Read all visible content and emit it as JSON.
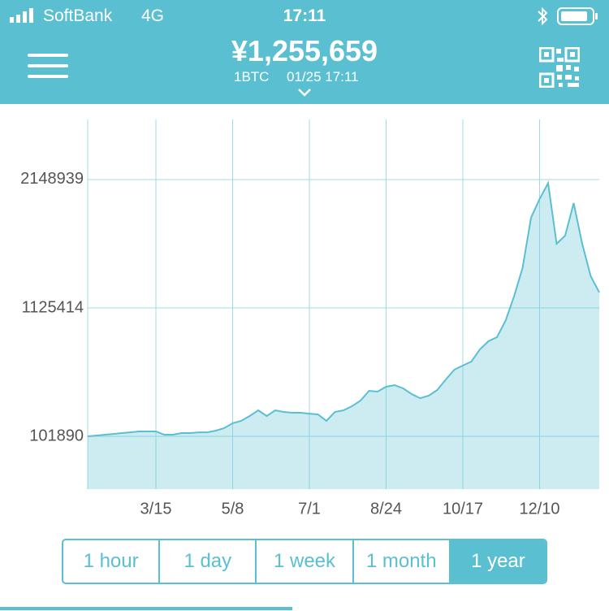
{
  "status_bar": {
    "carrier": "SoftBank",
    "network": "4G",
    "time": "17:11"
  },
  "header": {
    "price": "¥1,255,659",
    "unit": "1BTC",
    "timestamp": "01/25 17:11"
  },
  "chart_data": {
    "type": "area",
    "categories": [
      null,
      null,
      null,
      null,
      null,
      null,
      null,
      null,
      "3/15",
      null,
      null,
      null,
      null,
      null,
      null,
      null,
      null,
      "5/8",
      null,
      null,
      null,
      null,
      null,
      null,
      null,
      null,
      "7/1",
      null,
      null,
      null,
      null,
      null,
      null,
      null,
      null,
      "8/24",
      null,
      null,
      null,
      null,
      null,
      null,
      null,
      null,
      "10/17",
      null,
      null,
      null,
      null,
      null,
      null,
      null,
      null,
      "12/10",
      null,
      null,
      null,
      null,
      null,
      null,
      null
    ],
    "series": [
      {
        "color": "#5bbfd2",
        "values": [
          101890,
          108000,
          115000,
          121000,
          128000,
          134000,
          141000,
          141000,
          141000,
          115000,
          115000,
          128000,
          128000,
          134000,
          134000,
          147000,
          167000,
          206000,
          225000,
          264000,
          309000,
          264000,
          309000,
          296000,
          290000,
          290000,
          283000,
          277000,
          225000,
          296000,
          309000,
          342000,
          387000,
          465000,
          458000,
          497000,
          510000,
          484000,
          439000,
          406000,
          426000,
          471000,
          555000,
          633000,
          666000,
          698000,
          795000,
          860000,
          892000,
          1022000,
          1216000,
          1443000,
          1845000,
          1994000,
          2120000,
          1637000,
          1702000,
          1961000,
          1637000,
          1378000,
          1250000
        ]
      }
    ],
    "ylim": [
      -319000,
      2628000
    ],
    "yticks": [
      101890,
      1125414,
      2148939
    ],
    "grid": true
  },
  "range_buttons": {
    "options": [
      "1 hour",
      "1 day",
      "1 week",
      "1 month",
      "1 year"
    ],
    "selected_index": 4
  }
}
